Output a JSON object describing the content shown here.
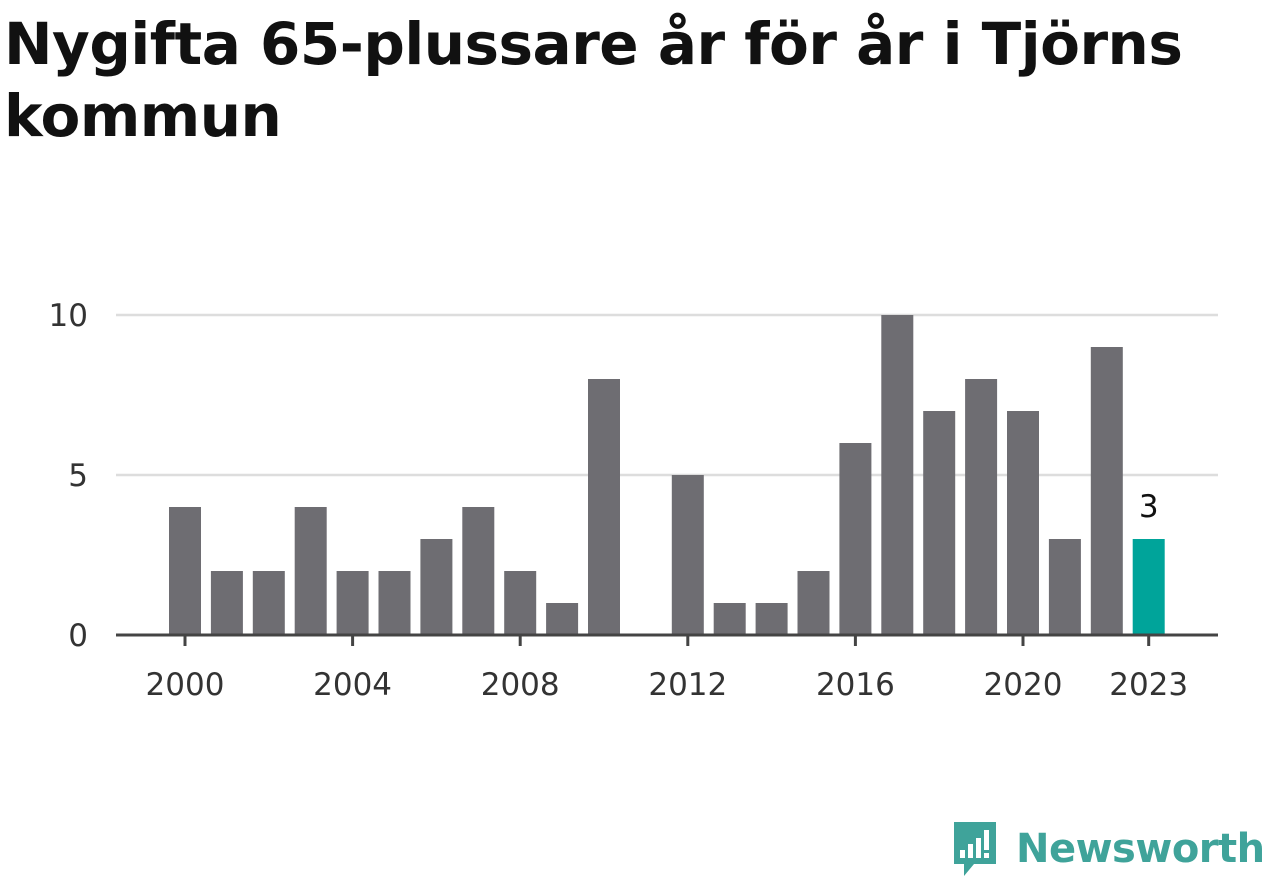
{
  "title": "Nygifta 65-plussare år för år i Tjörns kommun",
  "brand": {
    "name": "Newsworthy",
    "icon": "newsworthy-logo-icon"
  },
  "colors": {
    "bar": "#6e6d72",
    "highlight": "#00a49a",
    "grid": "#dddddd",
    "axis": "#444444",
    "brand": "#3fa39a"
  },
  "chart_data": {
    "type": "bar",
    "title": "Nygifta 65-plussare år för år i Tjörns kommun",
    "xlabel": "",
    "ylabel": "",
    "x": [
      2000,
      2001,
      2002,
      2003,
      2004,
      2005,
      2006,
      2007,
      2008,
      2009,
      2010,
      2011,
      2012,
      2013,
      2014,
      2015,
      2016,
      2017,
      2018,
      2019,
      2020,
      2021,
      2022,
      2023
    ],
    "values": [
      4,
      2,
      2,
      4,
      2,
      2,
      3,
      4,
      2,
      1,
      8,
      0,
      5,
      1,
      1,
      2,
      6,
      10,
      7,
      8,
      7,
      3,
      9,
      3
    ],
    "highlight": {
      "x": 2023,
      "value": 3,
      "label": "3"
    },
    "ylim": [
      0,
      10
    ],
    "yticks": [
      0,
      5,
      10
    ],
    "xticks": [
      2000,
      2004,
      2008,
      2012,
      2016,
      2020,
      2023
    ],
    "grid": true,
    "legend": "none"
  }
}
